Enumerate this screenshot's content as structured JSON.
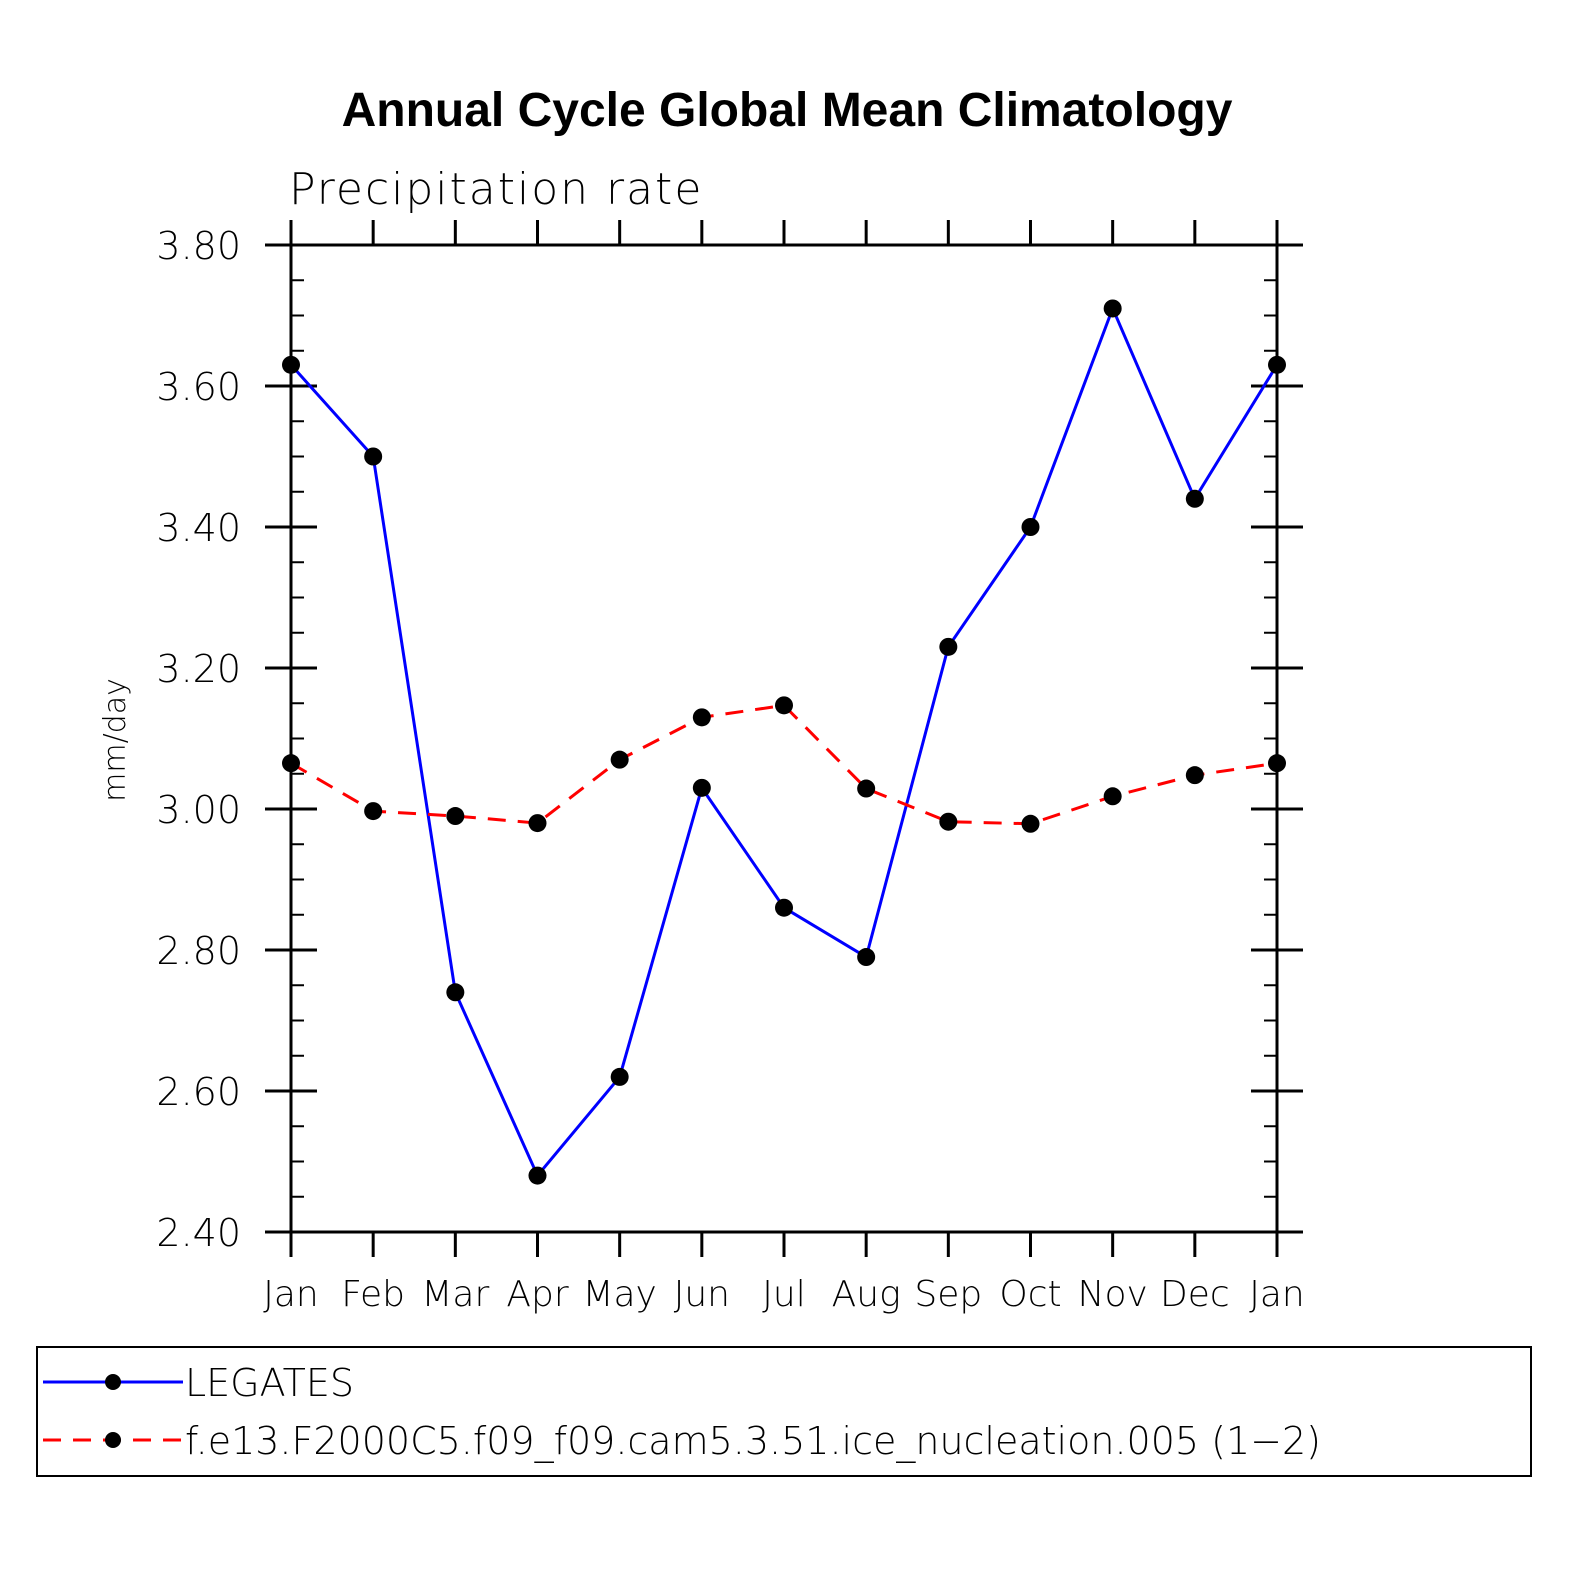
{
  "chart_data": {
    "type": "line",
    "title": "Annual Cycle Global Mean Climatology",
    "subtitle": "Precipitation rate",
    "xlabel": "",
    "ylabel": "mm/day",
    "categories": [
      "Jan",
      "Feb",
      "Mar",
      "Apr",
      "May",
      "Jun",
      "Jul",
      "Aug",
      "Sep",
      "Oct",
      "Nov",
      "Dec",
      "Jan"
    ],
    "yticks": [
      "2.40",
      "2.60",
      "2.80",
      "3.00",
      "3.20",
      "3.40",
      "3.60",
      "3.80"
    ],
    "ylim": [
      2.4,
      3.8
    ],
    "grid": false,
    "legend_position": "bottom",
    "series": [
      {
        "name": "LEGATES",
        "color": "#0000ff",
        "line_style": "solid",
        "marker": "filled-circle",
        "values": [
          3.63,
          3.5,
          2.74,
          2.48,
          2.62,
          3.03,
          2.86,
          2.79,
          3.23,
          3.4,
          3.71,
          3.44,
          3.63
        ]
      },
      {
        "name": "f.e13.F2000C5.f09_f09.cam5.3.51.ice_nucleation.005 (1−2)",
        "color": "#ff0000",
        "line_style": "dashed",
        "marker": "filled-circle",
        "values": [
          3.065,
          2.997,
          2.99,
          2.98,
          3.07,
          3.13,
          3.147,
          3.029,
          2.982,
          2.979,
          3.018,
          3.048,
          3.065
        ]
      }
    ]
  }
}
